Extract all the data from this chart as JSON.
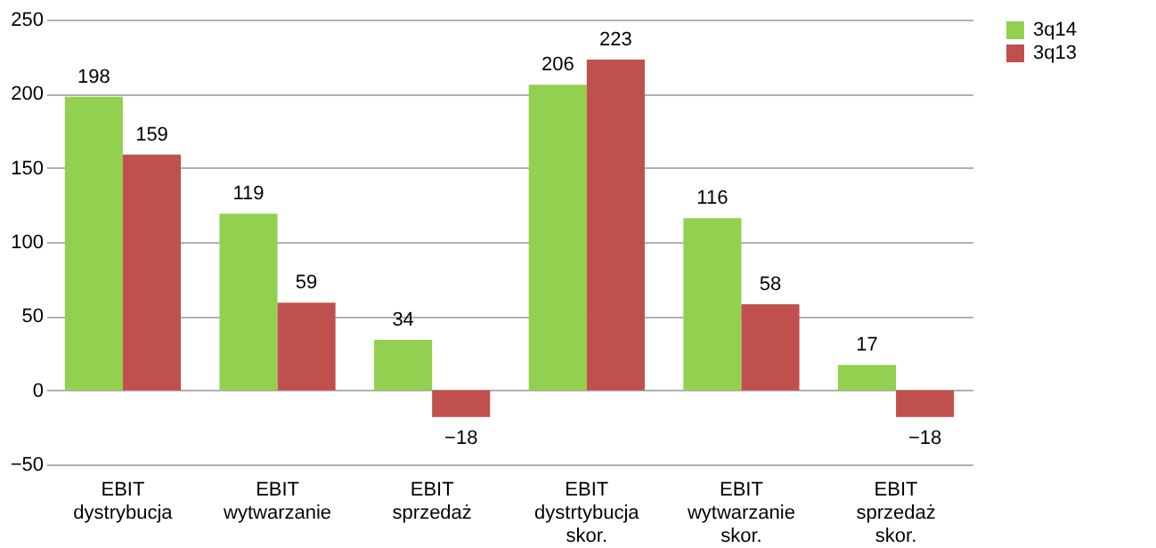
{
  "chart_data": {
    "type": "bar",
    "categories": [
      "EBIT dystrybucja",
      "EBIT wytwarzanie",
      "EBIT sprzedaż",
      "EBIT dystrtybucja skor.",
      "EBIT wytwarzanie skor.",
      "EBIT sprzedaż skor."
    ],
    "series": [
      {
        "name": "3q14",
        "color": "#92d050",
        "values": [
          198,
          119,
          34,
          206,
          116,
          17
        ]
      },
      {
        "name": "3q13",
        "color": "#c0504d",
        "values": [
          159,
          59,
          -18,
          223,
          58,
          -18
        ]
      }
    ],
    "ylim": [
      -50,
      250
    ],
    "yticks": [
      -50,
      0,
      50,
      100,
      150,
      200,
      250
    ],
    "grid": "y",
    "legend": "right",
    "data_labels": true
  }
}
